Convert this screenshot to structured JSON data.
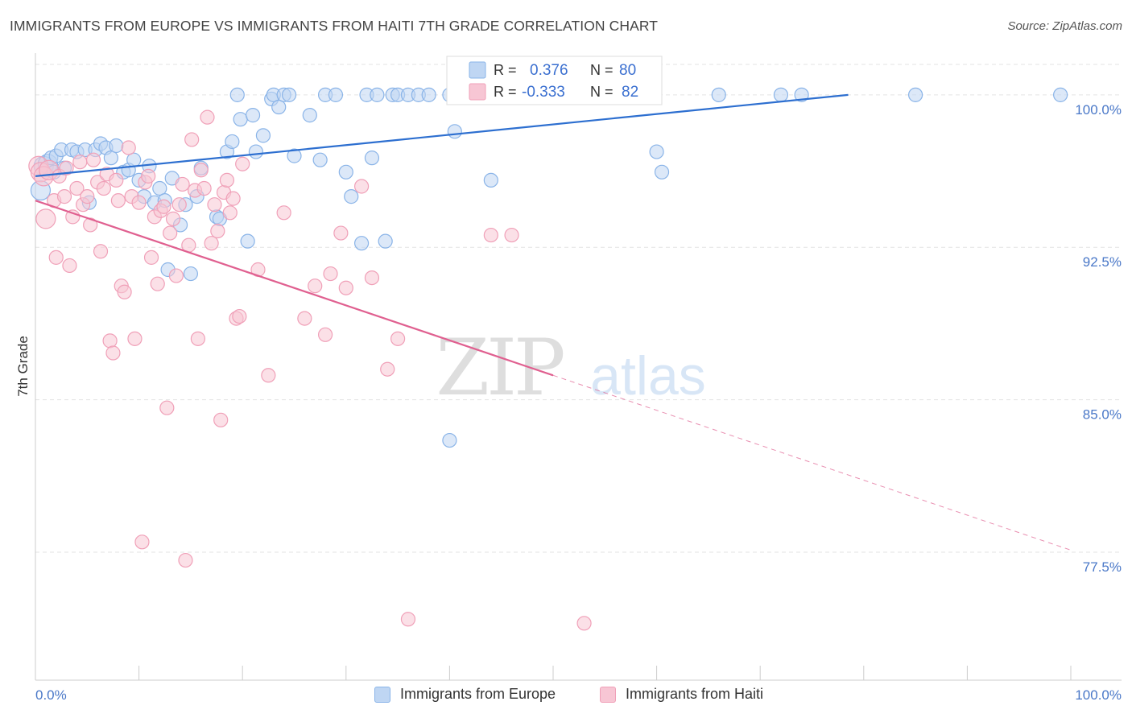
{
  "title": "IMMIGRANTS FROM EUROPE VS IMMIGRANTS FROM HAITI 7TH GRADE CORRELATION CHART",
  "source": "Source: ZipAtlas.com",
  "watermark": {
    "zip": "ZIP",
    "atlas": "atlas"
  },
  "chart_data": {
    "type": "scatter",
    "ylabel": "7th Grade",
    "xlim": [
      0,
      100
    ],
    "ylim": [
      71.2,
      101.5
    ],
    "x_ticks": [
      0,
      10,
      20,
      30,
      40,
      50,
      60,
      70,
      80,
      90,
      100
    ],
    "x_tick_labels": {
      "min": "0.0%",
      "max": "100.0%"
    },
    "y_ticks": [
      {
        "value": 100.0,
        "label": "100.0%"
      },
      {
        "value": 92.5,
        "label": "92.5%"
      },
      {
        "value": 85.0,
        "label": "85.0%"
      },
      {
        "value": 77.5,
        "label": "77.5%"
      }
    ],
    "grid": "horizontal dashed",
    "legend_position": "top-center",
    "series": [
      {
        "name": "Immigrants from Europe",
        "color": "#8ab4e8",
        "fill": "#bfd6f3",
        "line_color": "#2d6fd0",
        "R": "0.376",
        "N": "80",
        "trend": {
          "x0": 0,
          "y0": 96.0,
          "x1": 78.5,
          "y1": 100.0
        },
        "points": [
          [
            0.5,
            95.3
          ],
          [
            0.8,
            96.5
          ],
          [
            1.2,
            96.6
          ],
          [
            1.5,
            96.9
          ],
          [
            1.8,
            96.2
          ],
          [
            2.0,
            97.0
          ],
          [
            2.5,
            97.3
          ],
          [
            2.8,
            96.4
          ],
          [
            3.5,
            97.3
          ],
          [
            4.0,
            97.2
          ],
          [
            4.8,
            97.3
          ],
          [
            5.2,
            94.7
          ],
          [
            5.8,
            97.3
          ],
          [
            6.3,
            97.6
          ],
          [
            6.8,
            97.4
          ],
          [
            7.3,
            96.9
          ],
          [
            7.8,
            97.5
          ],
          [
            8.5,
            96.2
          ],
          [
            9.0,
            96.3
          ],
          [
            9.5,
            96.8
          ],
          [
            10.0,
            95.8
          ],
          [
            10.5,
            95.0
          ],
          [
            11.0,
            96.5
          ],
          [
            11.5,
            94.7
          ],
          [
            12.0,
            95.4
          ],
          [
            12.5,
            94.8
          ],
          [
            12.8,
            91.4
          ],
          [
            13.2,
            95.9
          ],
          [
            14.0,
            93.6
          ],
          [
            14.5,
            94.6
          ],
          [
            15.0,
            91.2
          ],
          [
            15.6,
            95.0
          ],
          [
            16.0,
            96.4
          ],
          [
            17.5,
            94.0
          ],
          [
            17.8,
            93.9
          ],
          [
            18.5,
            97.2
          ],
          [
            19.0,
            97.7
          ],
          [
            19.5,
            100.0
          ],
          [
            19.8,
            98.8
          ],
          [
            20.5,
            92.8
          ],
          [
            21.0,
            99.0
          ],
          [
            21.3,
            97.2
          ],
          [
            22.0,
            98.0
          ],
          [
            22.8,
            99.8
          ],
          [
            23.0,
            100.0
          ],
          [
            23.5,
            99.4
          ],
          [
            24.0,
            100.0
          ],
          [
            24.5,
            100.0
          ],
          [
            25.0,
            97.0
          ],
          [
            26.5,
            99.0
          ],
          [
            27.5,
            96.8
          ],
          [
            28.0,
            100.0
          ],
          [
            29.0,
            100.0
          ],
          [
            30.0,
            96.2
          ],
          [
            30.5,
            95.0
          ],
          [
            31.5,
            92.7
          ],
          [
            32.0,
            100.0
          ],
          [
            32.5,
            96.9
          ],
          [
            33.0,
            100.0
          ],
          [
            33.8,
            92.8
          ],
          [
            34.5,
            100.0
          ],
          [
            35.0,
            100.0
          ],
          [
            36.0,
            100.0
          ],
          [
            37.0,
            100.0
          ],
          [
            38.0,
            100.0
          ],
          [
            40.0,
            100.0
          ],
          [
            40.5,
            98.2
          ],
          [
            42.0,
            100.0
          ],
          [
            42.5,
            100.0
          ],
          [
            44.0,
            95.8
          ],
          [
            40.0,
            83.0
          ],
          [
            52.0,
            100.0
          ],
          [
            55.0,
            100.0
          ],
          [
            57.0,
            100.0
          ],
          [
            60.0,
            97.2
          ],
          [
            60.5,
            96.2
          ],
          [
            66.0,
            100.0
          ],
          [
            72.0,
            100.0
          ],
          [
            74.0,
            100.0
          ],
          [
            85.0,
            100.0
          ],
          [
            99.0,
            100.0
          ]
        ]
      },
      {
        "name": "Immigrants from Haiti",
        "color": "#f0a0b8",
        "fill": "#f7c6d4",
        "line_color": "#e06090",
        "R": "-0.333",
        "N": "82",
        "trend": {
          "x0": 0,
          "y0": 94.8,
          "x1": 50,
          "y1": 86.2
        },
        "trend_ext": {
          "x0": 50,
          "y0": 86.2,
          "x1": 100,
          "y1": 77.6
        },
        "points": [
          [
            0.3,
            96.5
          ],
          [
            0.5,
            96.2
          ],
          [
            0.8,
            96.0
          ],
          [
            1.0,
            93.9
          ],
          [
            1.3,
            96.3
          ],
          [
            1.8,
            94.8
          ],
          [
            2.0,
            92.0
          ],
          [
            2.3,
            96.0
          ],
          [
            2.8,
            95.0
          ],
          [
            3.0,
            96.4
          ],
          [
            3.3,
            91.6
          ],
          [
            3.6,
            94.0
          ],
          [
            4.0,
            95.4
          ],
          [
            4.3,
            96.7
          ],
          [
            4.6,
            94.6
          ],
          [
            5.0,
            95.0
          ],
          [
            5.3,
            93.6
          ],
          [
            5.6,
            96.8
          ],
          [
            6.0,
            95.7
          ],
          [
            6.3,
            92.3
          ],
          [
            6.6,
            95.4
          ],
          [
            6.9,
            96.1
          ],
          [
            7.2,
            87.9
          ],
          [
            7.5,
            87.3
          ],
          [
            7.8,
            95.8
          ],
          [
            8.0,
            94.8
          ],
          [
            8.3,
            90.6
          ],
          [
            8.6,
            90.3
          ],
          [
            9.0,
            97.4
          ],
          [
            9.3,
            95.0
          ],
          [
            9.6,
            88.0
          ],
          [
            10.0,
            94.7
          ],
          [
            10.3,
            78.0
          ],
          [
            10.6,
            95.7
          ],
          [
            10.9,
            96.0
          ],
          [
            11.2,
            92.0
          ],
          [
            11.5,
            94.0
          ],
          [
            11.8,
            90.7
          ],
          [
            12.1,
            94.3
          ],
          [
            12.4,
            94.5
          ],
          [
            12.7,
            84.6
          ],
          [
            13.0,
            93.2
          ],
          [
            13.3,
            93.9
          ],
          [
            13.6,
            91.1
          ],
          [
            13.9,
            94.6
          ],
          [
            14.2,
            95.6
          ],
          [
            14.5,
            77.1
          ],
          [
            14.8,
            92.6
          ],
          [
            15.1,
            97.8
          ],
          [
            15.4,
            95.3
          ],
          [
            15.7,
            88.0
          ],
          [
            16.0,
            96.3
          ],
          [
            16.3,
            95.4
          ],
          [
            16.6,
            98.9
          ],
          [
            17.0,
            92.7
          ],
          [
            17.3,
            94.6
          ],
          [
            17.6,
            93.3
          ],
          [
            17.9,
            84.0
          ],
          [
            18.2,
            95.2
          ],
          [
            18.5,
            95.8
          ],
          [
            18.8,
            94.2
          ],
          [
            19.1,
            94.9
          ],
          [
            19.4,
            89.0
          ],
          [
            19.7,
            89.1
          ],
          [
            20.0,
            96.6
          ],
          [
            21.5,
            91.4
          ],
          [
            22.5,
            86.2
          ],
          [
            24.0,
            94.2
          ],
          [
            26.0,
            89.0
          ],
          [
            27.0,
            90.6
          ],
          [
            28.0,
            88.2
          ],
          [
            28.5,
            91.2
          ],
          [
            29.5,
            93.2
          ],
          [
            30.0,
            90.5
          ],
          [
            31.5,
            95.5
          ],
          [
            32.5,
            91.0
          ],
          [
            34.0,
            86.5
          ],
          [
            35.0,
            88.0
          ],
          [
            36.0,
            74.2
          ],
          [
            44.0,
            93.1
          ],
          [
            46.0,
            93.1
          ],
          [
            53.0,
            74.0
          ]
        ]
      }
    ]
  }
}
